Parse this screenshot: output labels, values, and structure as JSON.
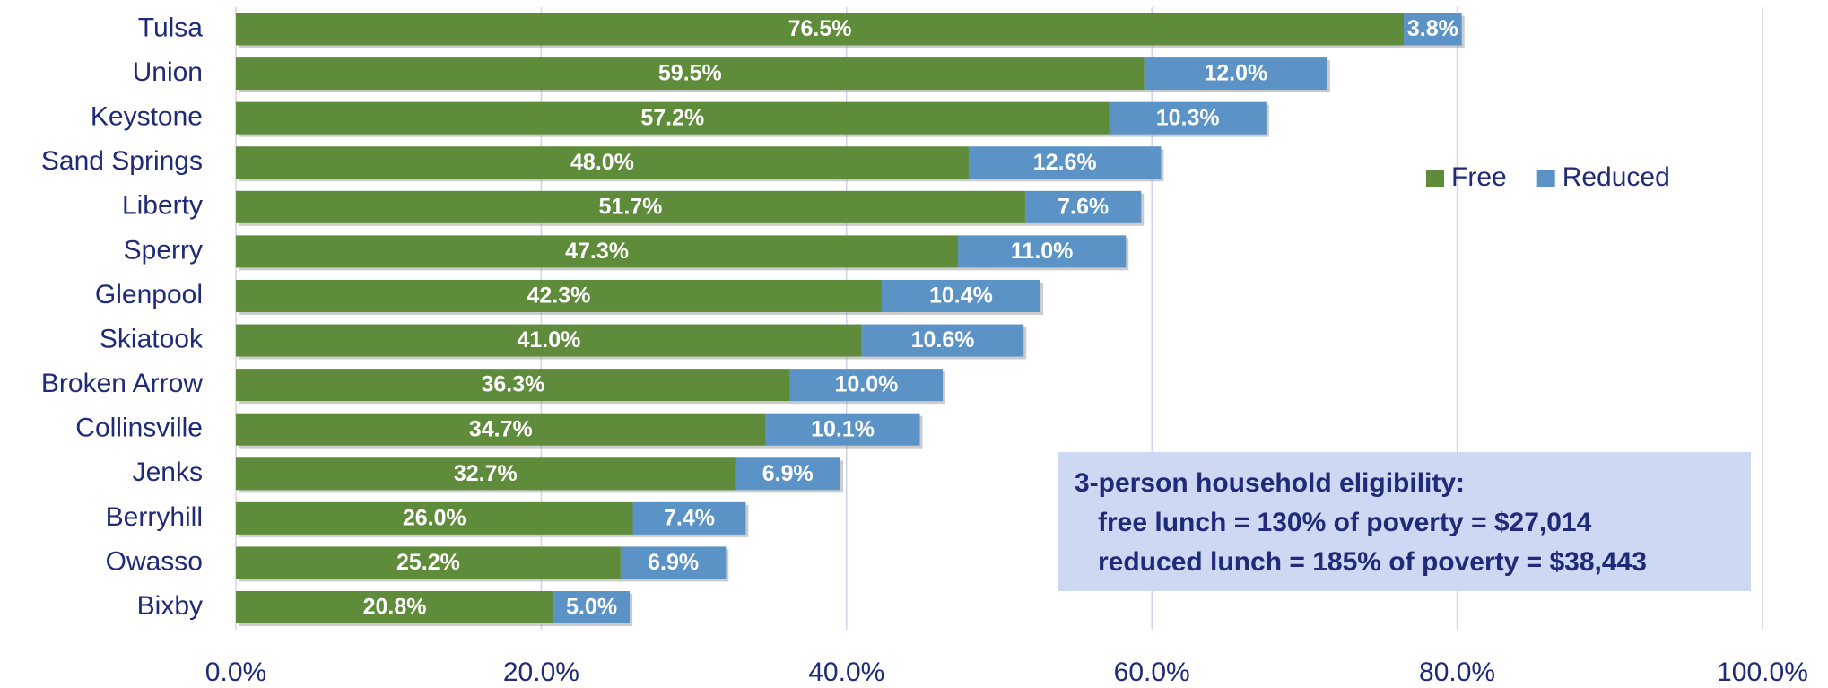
{
  "chart_data": {
    "type": "stacked_barh",
    "categories": [
      "Tulsa",
      "Union",
      "Keystone",
      "Sand Springs",
      "Liberty",
      "Sperry",
      "Glenpool",
      "Skiatook",
      "Broken Arrow",
      "Collinsville",
      "Jenks",
      "Berryhill",
      "Owasso",
      "Bixby"
    ],
    "series": [
      {
        "name": "Free",
        "color": "#5e8c3a",
        "values": [
          76.5,
          59.5,
          57.2,
          48.0,
          51.7,
          47.3,
          42.3,
          41.0,
          36.3,
          34.7,
          32.7,
          26.0,
          25.2,
          20.8
        ],
        "value_labels": [
          "76.5%",
          "59.5%",
          "57.2%",
          "48.0%",
          "51.7%",
          "47.3%",
          "42.3%",
          "41.0%",
          "36.3%",
          "34.7%",
          "32.7%",
          "26.0%",
          "25.2%",
          "20.8%"
        ]
      },
      {
        "name": "Reduced",
        "color": "#5b93c7",
        "values": [
          3.8,
          12.0,
          10.3,
          12.6,
          7.6,
          11.0,
          10.4,
          10.6,
          10.0,
          10.1,
          6.9,
          7.4,
          6.9,
          5.0
        ],
        "value_labels": [
          "3.8%",
          "12.0%",
          "10.3%",
          "12.6%",
          "7.6%",
          "11.0%",
          "10.4%",
          "10.6%",
          "10.0%",
          "10.1%",
          "6.9%",
          "7.4%",
          "6.9%",
          "5.0%"
        ]
      }
    ],
    "xlim": [
      0,
      100
    ],
    "xticks": [
      {
        "value": 0,
        "label": "0.0%"
      },
      {
        "value": 20,
        "label": "20.0%"
      },
      {
        "value": 40,
        "label": "40.0%"
      },
      {
        "value": 60,
        "label": "60.0%"
      },
      {
        "value": 80,
        "label": "80.0%"
      },
      {
        "value": 100,
        "label": "100.0%"
      }
    ],
    "grid": true,
    "legend": "upper right",
    "annotation": {
      "title": "3-person household eligibility:",
      "lines": [
        "free lunch = 130% of poverty = $27,014",
        "reduced lunch = 185% of poverty = $38,443"
      ]
    }
  }
}
